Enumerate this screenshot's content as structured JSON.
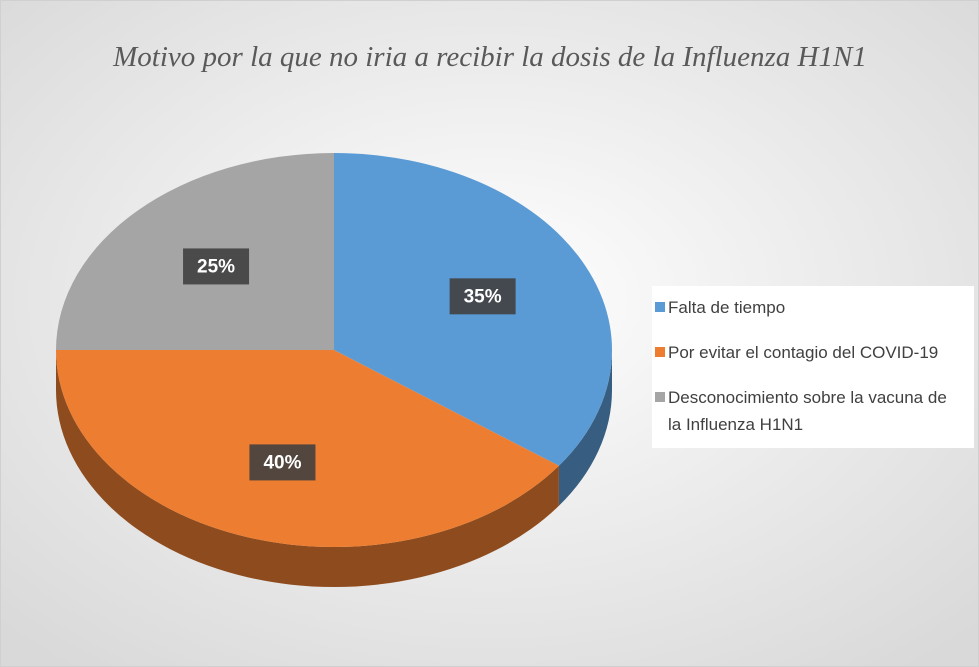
{
  "chart_data": {
    "type": "pie",
    "title": "Motivo por la que no iria a recibir la dosis de la Influenza H1N1",
    "categories": [
      "Falta de tiempo",
      "Por evitar el contagio del COVID-19",
      "Desconocimiento sobre la vacuna de la Influenza H1N1"
    ],
    "values": [
      35,
      40,
      25
    ],
    "value_labels": [
      "35%",
      "40%",
      "25%"
    ],
    "colors": [
      "#5b9bd5",
      "#ed7d31",
      "#a5a5a5"
    ],
    "legend": "right"
  }
}
